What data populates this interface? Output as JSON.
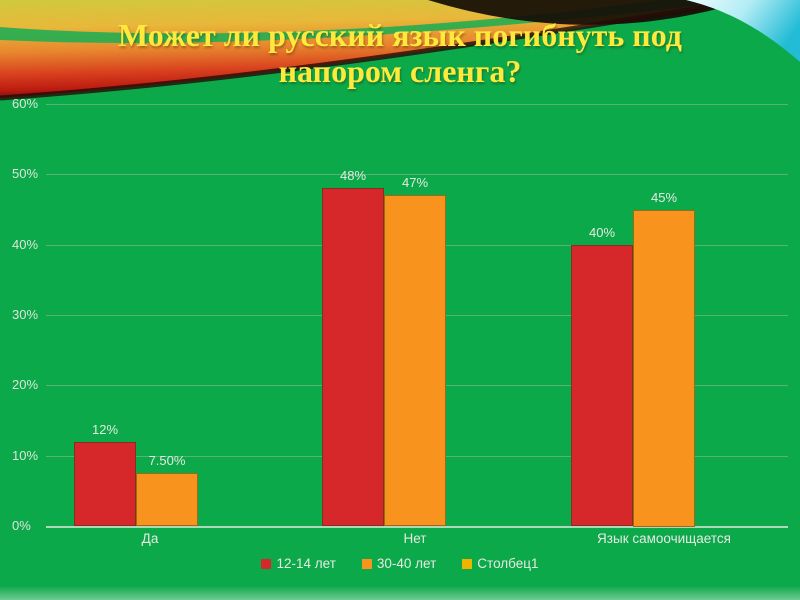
{
  "title": "Может ли русский язык погибнуть под напором сленга?",
  "colors": {
    "background_green": "#0CA94A",
    "title_yellow": "#FFE93C",
    "label_text": "#E6EAE3",
    "series_red": "#D6282A",
    "series_orange": "#F8941E",
    "series_gold": "#EFB400"
  },
  "chart_data": {
    "type": "bar",
    "title": "",
    "categories": [
      "Да",
      "Нет",
      "Язык самоочищается"
    ],
    "series": [
      {
        "name": "12-14 лет",
        "color": "#D6282A",
        "values": [
          12,
          48,
          40
        ],
        "value_labels": [
          "12%",
          "48%",
          "40%"
        ]
      },
      {
        "name": "30-40 лет",
        "color": "#F8941E",
        "values": [
          7.5,
          47,
          45
        ],
        "value_labels": [
          "7.50%",
          "47%",
          "45%"
        ]
      },
      {
        "name": "Столбец1",
        "color": "#EFB400",
        "values": [
          null,
          null,
          null
        ],
        "value_labels": []
      }
    ],
    "y_ticks": [
      "0%",
      "10%",
      "20%",
      "30%",
      "40%",
      "50%",
      "60%"
    ],
    "ylim": [
      0,
      60
    ],
    "grid": true,
    "legend_position": "bottom"
  }
}
